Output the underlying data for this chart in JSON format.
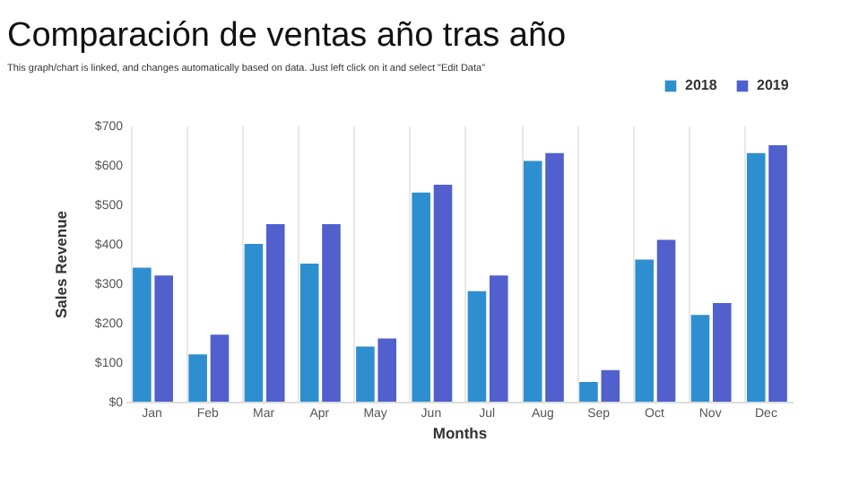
{
  "chart_data": {
    "type": "bar",
    "title": "Comparación de ventas año tras año",
    "subtitle": "This graph/chart is linked, and changes automatically based on data. Just left click on it and select \"Edit Data\"",
    "xlabel": "Months",
    "ylabel": "Sales Revenue",
    "categories": [
      "Jan",
      "Feb",
      "Mar",
      "Apr",
      "May",
      "Jun",
      "Jul",
      "Aug",
      "Sep",
      "Oct",
      "Nov",
      "Dec"
    ],
    "series": [
      {
        "name": "2018",
        "color": "#2e8fd0",
        "values": [
          340,
          120,
          400,
          350,
          140,
          530,
          280,
          610,
          50,
          360,
          220,
          630
        ]
      },
      {
        "name": "2019",
        "color": "#5160cc",
        "values": [
          320,
          170,
          450,
          450,
          160,
          550,
          320,
          630,
          80,
          410,
          250,
          650
        ]
      }
    ],
    "ylim": [
      0,
      700
    ],
    "yticks": [
      {
        "value": 0,
        "label": "$0"
      },
      {
        "value": 100,
        "label": "$100"
      },
      {
        "value": 200,
        "label": "$200"
      },
      {
        "value": 300,
        "label": "$300"
      },
      {
        "value": 400,
        "label": "$400"
      },
      {
        "value": 500,
        "label": "$500"
      },
      {
        "value": 600,
        "label": "$600"
      },
      {
        "value": 700,
        "label": "$700"
      }
    ],
    "grid": "x",
    "legend": "top right"
  }
}
